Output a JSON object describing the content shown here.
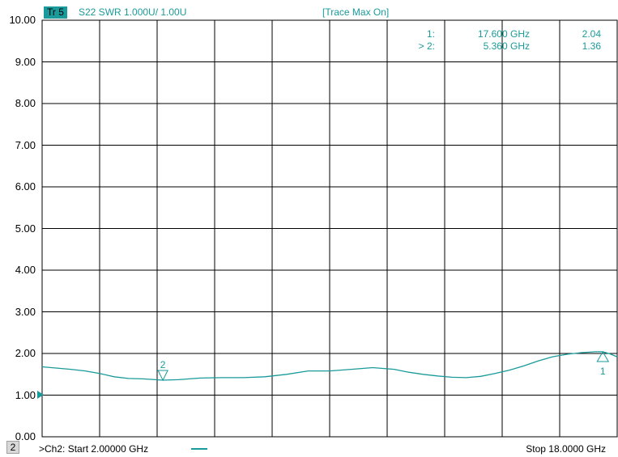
{
  "header": {
    "trace_tag": "Tr 5",
    "trace_definition": "S22 SWR 1.000U/  1.00U",
    "trace_status": "[Trace Max On]"
  },
  "markers_table": [
    {
      "id": "1:",
      "freq": "17.600 GHz",
      "value": "2.04"
    },
    {
      "id": "> 2:",
      "freq": "5.360 GHz",
      "value": "1.36"
    }
  ],
  "y_axis": {
    "ticks": [
      "10.00",
      "9.00",
      "8.00",
      "7.00",
      "6.00",
      "5.00",
      "4.00",
      "3.00",
      "2.00",
      "1.00",
      "0.00"
    ]
  },
  "footer": {
    "channel_badge": "2",
    "start_label": ">Ch2:  Start  2.00000 GHz",
    "stop_label": "Stop  18.0000 GHz"
  },
  "colors": {
    "trace": "#1a9a9a",
    "grid": "#000000",
    "background": "#ffffff"
  },
  "chart_data": {
    "type": "line",
    "title": "",
    "xlabel": "",
    "ylabel": "",
    "xlim": [
      2.0,
      18.0
    ],
    "ylim": [
      0.0,
      10.0
    ],
    "grid": true,
    "series": [
      {
        "name": "S22 SWR",
        "x": [
          2.0,
          2.8,
          3.2,
          3.6,
          4.0,
          4.4,
          4.8,
          5.36,
          5.8,
          6.4,
          7.0,
          7.6,
          8.2,
          8.8,
          9.4,
          10.0,
          10.6,
          11.2,
          11.8,
          12.2,
          12.6,
          13.0,
          13.4,
          13.8,
          14.2,
          14.6,
          15.0,
          15.4,
          15.8,
          16.2,
          16.6,
          17.0,
          17.4,
          17.6,
          17.8,
          18.0
        ],
        "y": [
          1.68,
          1.62,
          1.58,
          1.52,
          1.44,
          1.4,
          1.39,
          1.36,
          1.37,
          1.41,
          1.42,
          1.42,
          1.44,
          1.5,
          1.58,
          1.58,
          1.62,
          1.66,
          1.62,
          1.55,
          1.5,
          1.46,
          1.43,
          1.42,
          1.45,
          1.52,
          1.6,
          1.7,
          1.82,
          1.92,
          1.98,
          2.02,
          2.04,
          2.04,
          1.99,
          1.92
        ]
      }
    ],
    "markers": [
      {
        "label": "1",
        "x": 17.6,
        "y": 2.04,
        "style": "up"
      },
      {
        "label": "2",
        "x": 5.36,
        "y": 1.36,
        "style": "down"
      }
    ]
  }
}
